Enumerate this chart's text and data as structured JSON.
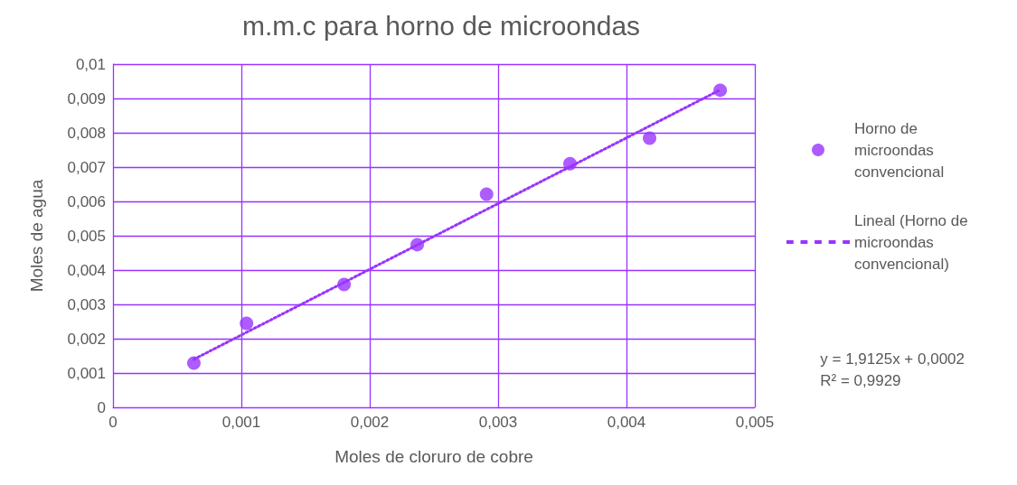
{
  "chart_data": {
    "type": "scatter",
    "title": "m.m.c para horno de microondas",
    "xlabel": "Moles de cloruro de cobre",
    "ylabel": "Moles de agua",
    "series": [
      {
        "name": "Horno de microondas convencional",
        "color": "#9933ff",
        "marker": "circle",
        "x": [
          0.00063,
          0.00104,
          0.0018,
          0.00237,
          0.00291,
          0.00356,
          0.00418,
          0.00473
        ],
        "values": [
          0.00129,
          0.00245,
          0.00358,
          0.00474,
          0.00621,
          0.0071,
          0.00784,
          0.00924
        ]
      },
      {
        "name": "Lineal (Horno de microondas convencional)",
        "type": "line",
        "color": "#9933ff",
        "line_style": "dotted",
        "marker": "none",
        "x": [
          0.00063,
          0.00473
        ],
        "values": [
          0.0014,
          0.00925
        ]
      }
    ],
    "xlim": [
      0,
      0.005
    ],
    "xticks": [
      0,
      {
        "value": 0.001,
        "label": "0,001"
      },
      {
        "value": 0.002,
        "label": "0,002"
      },
      {
        "value": 0.003,
        "label": "0,003"
      },
      {
        "value": 0.004,
        "label": "0,004"
      },
      {
        "value": 0.005,
        "label": "0,005"
      }
    ],
    "ylim": [
      0,
      0.01
    ],
    "yticks": [
      0,
      {
        "value": 0.001,
        "label": "0,001"
      },
      {
        "value": 0.002,
        "label": "0,002"
      },
      {
        "value": 0.003,
        "label": "0,003"
      },
      {
        "value": 0.004,
        "label": "0,004"
      },
      {
        "value": 0.005,
        "label": "0,005"
      },
      {
        "value": 0.006,
        "label": "0,006"
      },
      {
        "value": 0.007,
        "label": "0,007"
      },
      {
        "value": 0.008,
        "label": "0,008"
      },
      {
        "value": 0.009,
        "label": "0,009"
      },
      {
        "value": 0.01,
        "label": "0,01"
      }
    ],
    "grid": true,
    "legend": "right",
    "annotations": [
      "y = 1,9125x + 0,0002",
      "R² = 0,9929"
    ]
  }
}
